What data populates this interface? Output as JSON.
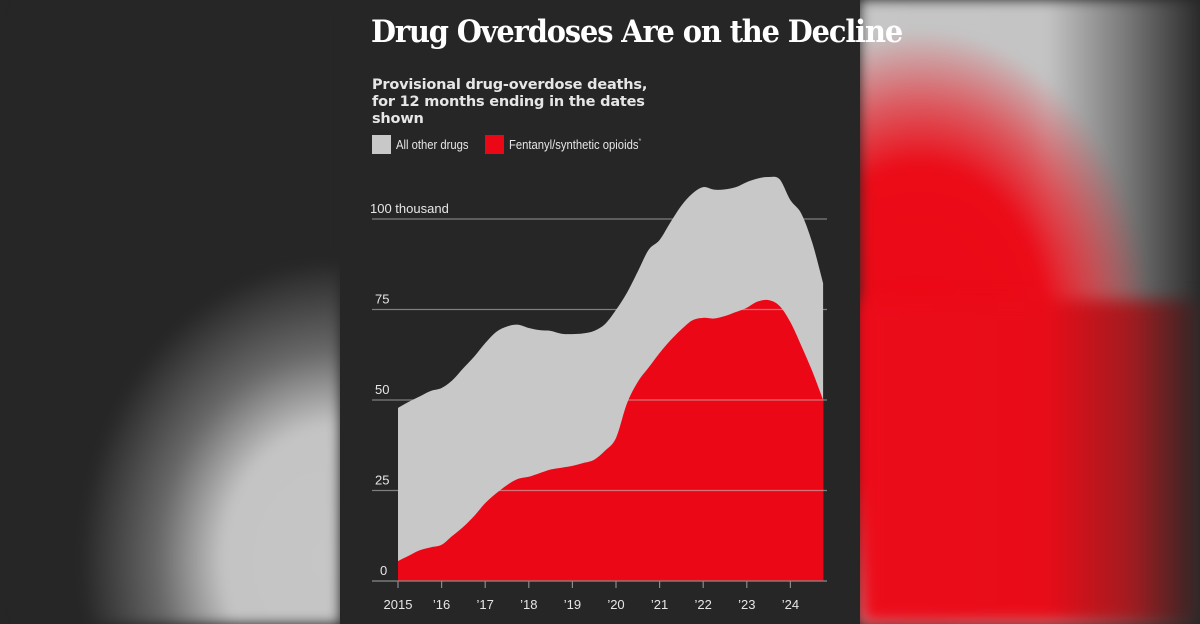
{
  "page": {
    "background_color": "#262626"
  },
  "title": "Drug Overdoses Are on the Decline",
  "subtitle": "Provisional drug-overdose deaths, for 12 months ending in the dates shown",
  "legend": [
    {
      "label": "All other drugs",
      "color": "#c8c8c8",
      "footnote_mark": ""
    },
    {
      "label": "Fentanyl/synthetic opioids",
      "color": "#ec0716",
      "footnote_mark": "*"
    }
  ],
  "chart_data": {
    "type": "area",
    "stacked": true,
    "title": "Drug Overdoses Are on the Decline",
    "subtitle": "Provisional drug-overdose deaths, for 12 months ending in the dates shown",
    "xlabel": "",
    "ylabel": "",
    "unit": "thousand deaths",
    "xlim": [
      2015.0,
      2024.75
    ],
    "ylim": [
      0,
      112
    ],
    "grid": true,
    "legend_position": "top-left",
    "x_ticks": [
      2015,
      2016,
      2017,
      2018,
      2019,
      2020,
      2021,
      2022,
      2023,
      2024
    ],
    "x_tick_labels": [
      "2015",
      "’16",
      "’17",
      "’18",
      "’19",
      "’20",
      "’21",
      "’22",
      "’23",
      "’24"
    ],
    "y_ticks": [
      0,
      25,
      50,
      75,
      100
    ],
    "y_tick_labels": [
      "0",
      "25",
      "50",
      "75",
      "100 thousand"
    ],
    "x": [
      2015.0,
      2015.25,
      2015.5,
      2015.75,
      2016.0,
      2016.25,
      2016.5,
      2016.75,
      2017.0,
      2017.25,
      2017.5,
      2017.75,
      2018.0,
      2018.25,
      2018.5,
      2018.75,
      2019.0,
      2019.25,
      2019.5,
      2019.75,
      2020.0,
      2020.25,
      2020.5,
      2020.75,
      2021.0,
      2021.25,
      2021.5,
      2021.75,
      2022.0,
      2022.25,
      2022.5,
      2022.75,
      2023.0,
      2023.25,
      2023.5,
      2023.75,
      2024.0,
      2024.25,
      2024.5,
      2024.75
    ],
    "series": [
      {
        "name": "Fentanyl/synthetic opioids",
        "color": "#ec0716",
        "values": [
          5.5,
          7.0,
          8.5,
          9.3,
          10.0,
          12.5,
          15.0,
          18.0,
          21.5,
          24.2,
          26.5,
          28.2,
          28.8,
          29.8,
          30.8,
          31.3,
          31.8,
          32.6,
          33.5,
          36.0,
          39.5,
          49.0,
          55.0,
          59.0,
          63.0,
          66.5,
          69.5,
          72.0,
          72.7,
          72.5,
          73.2,
          74.3,
          75.5,
          77.2,
          77.6,
          76.0,
          71.5,
          65.0,
          58.0,
          50.0
        ]
      },
      {
        "name": "All other drugs",
        "color": "#c8c8c8",
        "values": [
          42.3,
          42.5,
          42.5,
          43.2,
          43.3,
          43.0,
          43.8,
          44.0,
          44.2,
          44.6,
          43.8,
          42.6,
          41.1,
          39.5,
          38.3,
          37.0,
          36.4,
          35.8,
          35.6,
          35.0,
          35.4,
          30.6,
          30.5,
          32.5,
          31.2,
          32.6,
          34.2,
          35.0,
          36.1,
          35.6,
          35.0,
          34.5,
          34.7,
          34.0,
          34.0,
          35.0,
          33.7,
          36.5,
          35.5,
          32.3
        ]
      }
    ],
    "totals": [
      47.8,
      49.5,
      51.0,
      52.5,
      53.3,
      55.5,
      58.8,
      62.0,
      65.7,
      68.8,
      70.3,
      70.8,
      69.9,
      69.3,
      69.1,
      68.3,
      68.2,
      68.4,
      69.1,
      71.0,
      74.9,
      79.6,
      85.5,
      91.5,
      94.2,
      99.1,
      103.7,
      107.0,
      108.8,
      108.1,
      108.2,
      108.8,
      110.2,
      111.2,
      111.6,
      111.0,
      105.2,
      101.5,
      93.5,
      82.3
    ]
  }
}
